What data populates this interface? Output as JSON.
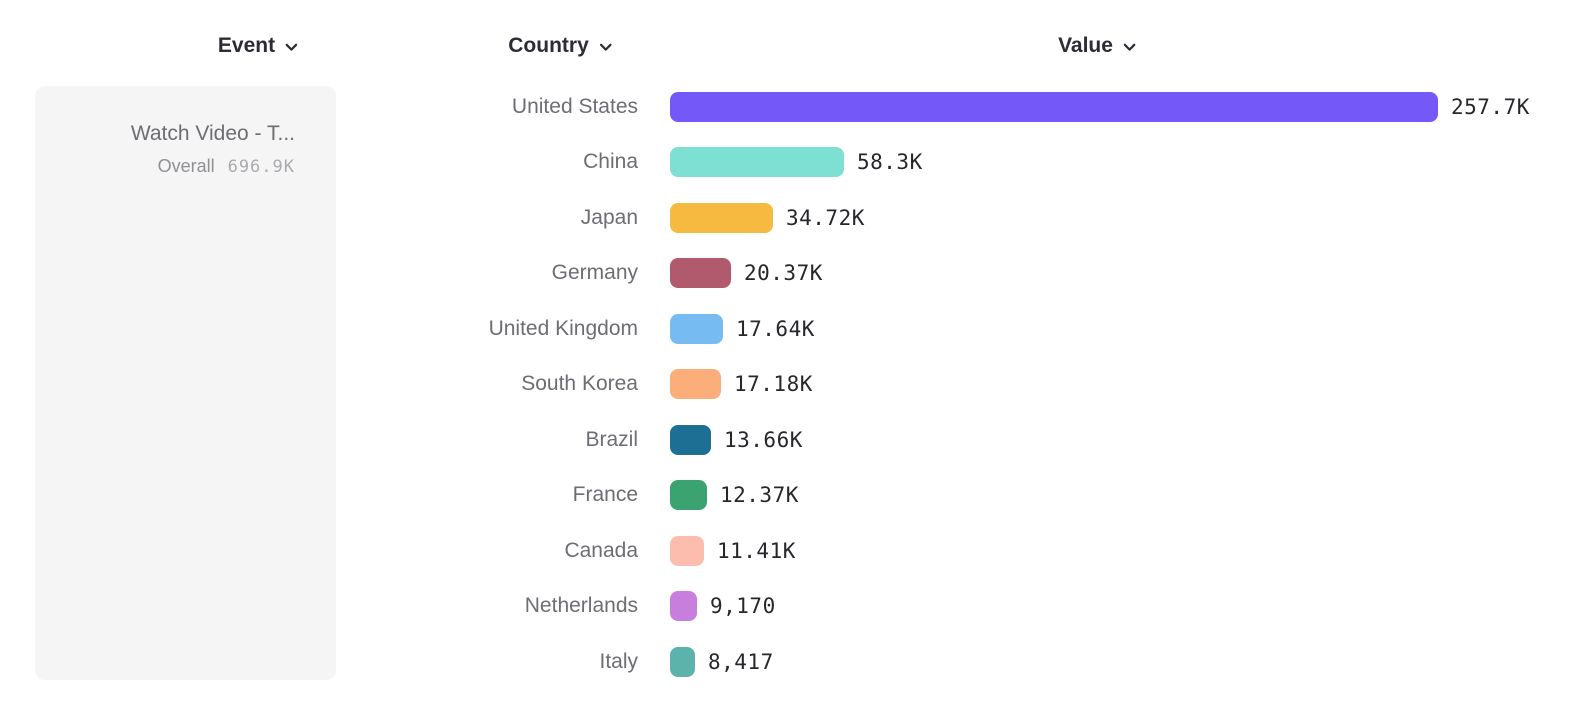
{
  "columns": {
    "event": {
      "label": "Event"
    },
    "country": {
      "label": "Country"
    },
    "value": {
      "label": "Value"
    }
  },
  "event_panel": {
    "event_name": "Watch Video - T...",
    "overall_label": "Overall",
    "overall_value": "696.9K"
  },
  "chart_data": {
    "type": "bar",
    "orientation": "horizontal",
    "title": "",
    "xlabel": "Value",
    "ylabel": "Country",
    "xlim": [
      0,
      257700
    ],
    "grid": false,
    "legend": false,
    "categories": [
      "United States",
      "China",
      "Japan",
      "Germany",
      "United Kingdom",
      "South Korea",
      "Brazil",
      "France",
      "Canada",
      "Netherlands",
      "Italy"
    ],
    "values": [
      257700,
      58300,
      34720,
      20370,
      17640,
      17180,
      13660,
      12370,
      11410,
      9170,
      8417
    ],
    "value_labels": [
      "257.7K",
      "58.3K",
      "34.72K",
      "20.37K",
      "17.64K",
      "17.18K",
      "13.66K",
      "12.37K",
      "11.41K",
      "9,170",
      "8,417"
    ],
    "colors": [
      "#7559f8",
      "#7ee0d2",
      "#f6ba41",
      "#b25a6d",
      "#76bcf2",
      "#fbad7a",
      "#1d7093",
      "#3ba370",
      "#fcbdaf",
      "#c87edc",
      "#5bb3ab"
    ]
  }
}
